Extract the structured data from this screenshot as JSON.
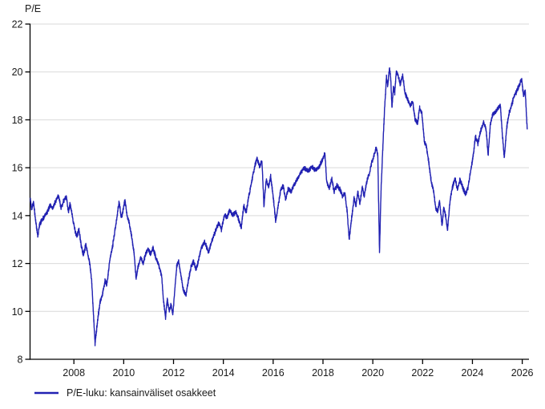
{
  "chart_data": {
    "type": "line",
    "title": "",
    "ylabel": "P/E",
    "xlabel": "",
    "xlim": [
      2006.24,
      2026.27
    ],
    "ylim": [
      8,
      22
    ],
    "x_ticks": [
      2008,
      2010,
      2012,
      2014,
      2016,
      2018,
      2020,
      2022,
      2024,
      2026
    ],
    "y_ticks": [
      8,
      10,
      12,
      14,
      16,
      18,
      20,
      22
    ],
    "grid": "horizontal",
    "legend_position": "bottom-left",
    "render_noise": 0.11,
    "colors": {
      "line": "#2121b2",
      "grid": "#d9d9d9",
      "axis": "#000000",
      "text": "#1a1a1a"
    },
    "series": [
      {
        "name": "P/E-luku: kansainväliset osakkeet",
        "color": "#2121b2",
        "points": [
          [
            2006.25,
            14.7
          ],
          [
            2006.3,
            14.3
          ],
          [
            2006.38,
            14.55
          ],
          [
            2006.45,
            13.9
          ],
          [
            2006.55,
            13.15
          ],
          [
            2006.62,
            13.6
          ],
          [
            2006.72,
            13.85
          ],
          [
            2006.82,
            13.95
          ],
          [
            2006.95,
            14.2
          ],
          [
            2007.05,
            14.45
          ],
          [
            2007.15,
            14.3
          ],
          [
            2007.25,
            14.55
          ],
          [
            2007.38,
            14.85
          ],
          [
            2007.48,
            14.3
          ],
          [
            2007.58,
            14.6
          ],
          [
            2007.7,
            14.8
          ],
          [
            2007.78,
            14.15
          ],
          [
            2007.85,
            14.5
          ],
          [
            2007.95,
            13.9
          ],
          [
            2008.05,
            13.35
          ],
          [
            2008.12,
            13.1
          ],
          [
            2008.2,
            13.45
          ],
          [
            2008.3,
            12.7
          ],
          [
            2008.38,
            12.35
          ],
          [
            2008.48,
            12.8
          ],
          [
            2008.58,
            12.3
          ],
          [
            2008.65,
            11.9
          ],
          [
            2008.72,
            11.2
          ],
          [
            2008.8,
            9.6
          ],
          [
            2008.85,
            8.65
          ],
          [
            2008.95,
            9.6
          ],
          [
            2009.05,
            10.4
          ],
          [
            2009.15,
            10.7
          ],
          [
            2009.25,
            11.3
          ],
          [
            2009.32,
            11.1
          ],
          [
            2009.45,
            12.2
          ],
          [
            2009.55,
            12.7
          ],
          [
            2009.65,
            13.4
          ],
          [
            2009.75,
            14.1
          ],
          [
            2009.82,
            14.6
          ],
          [
            2009.9,
            13.9
          ],
          [
            2009.97,
            14.2
          ],
          [
            2010.05,
            14.65
          ],
          [
            2010.12,
            14.1
          ],
          [
            2010.22,
            13.7
          ],
          [
            2010.32,
            13.1
          ],
          [
            2010.42,
            12.4
          ],
          [
            2010.5,
            11.35
          ],
          [
            2010.58,
            11.9
          ],
          [
            2010.68,
            12.25
          ],
          [
            2010.78,
            12.0
          ],
          [
            2010.88,
            12.4
          ],
          [
            2010.98,
            12.6
          ],
          [
            2011.08,
            12.4
          ],
          [
            2011.18,
            12.65
          ],
          [
            2011.3,
            12.2
          ],
          [
            2011.42,
            11.9
          ],
          [
            2011.52,
            11.5
          ],
          [
            2011.6,
            10.4
          ],
          [
            2011.68,
            9.75
          ],
          [
            2011.75,
            10.5
          ],
          [
            2011.83,
            10.0
          ],
          [
            2011.9,
            10.3
          ],
          [
            2011.97,
            9.85
          ],
          [
            2012.05,
            10.9
          ],
          [
            2012.13,
            11.9
          ],
          [
            2012.2,
            12.1
          ],
          [
            2012.3,
            11.5
          ],
          [
            2012.4,
            10.85
          ],
          [
            2012.5,
            10.7
          ],
          [
            2012.6,
            11.3
          ],
          [
            2012.7,
            11.85
          ],
          [
            2012.8,
            12.1
          ],
          [
            2012.9,
            11.75
          ],
          [
            2013.0,
            12.1
          ],
          [
            2013.1,
            12.6
          ],
          [
            2013.25,
            12.9
          ],
          [
            2013.4,
            12.45
          ],
          [
            2013.55,
            13.0
          ],
          [
            2013.7,
            13.4
          ],
          [
            2013.82,
            13.7
          ],
          [
            2013.92,
            13.4
          ],
          [
            2014.05,
            14.05
          ],
          [
            2014.15,
            13.9
          ],
          [
            2014.25,
            14.25
          ],
          [
            2014.38,
            14.0
          ],
          [
            2014.5,
            14.15
          ],
          [
            2014.6,
            13.9
          ],
          [
            2014.72,
            13.5
          ],
          [
            2014.82,
            14.4
          ],
          [
            2014.92,
            14.15
          ],
          [
            2015.02,
            14.8
          ],
          [
            2015.15,
            15.5
          ],
          [
            2015.25,
            16.0
          ],
          [
            2015.35,
            16.4
          ],
          [
            2015.45,
            16.05
          ],
          [
            2015.55,
            16.25
          ],
          [
            2015.63,
            14.4
          ],
          [
            2015.72,
            15.5
          ],
          [
            2015.82,
            15.2
          ],
          [
            2015.9,
            15.65
          ],
          [
            2016.0,
            14.8
          ],
          [
            2016.1,
            13.75
          ],
          [
            2016.2,
            14.4
          ],
          [
            2016.3,
            15.05
          ],
          [
            2016.4,
            15.25
          ],
          [
            2016.5,
            14.7
          ],
          [
            2016.6,
            15.1
          ],
          [
            2016.72,
            15.0
          ],
          [
            2016.85,
            15.3
          ],
          [
            2016.95,
            15.5
          ],
          [
            2017.1,
            15.8
          ],
          [
            2017.25,
            16.0
          ],
          [
            2017.4,
            15.85
          ],
          [
            2017.55,
            16.05
          ],
          [
            2017.7,
            15.9
          ],
          [
            2017.85,
            16.05
          ],
          [
            2017.95,
            16.25
          ],
          [
            2018.08,
            16.6
          ],
          [
            2018.15,
            15.4
          ],
          [
            2018.25,
            15.15
          ],
          [
            2018.35,
            15.55
          ],
          [
            2018.45,
            15.0
          ],
          [
            2018.55,
            15.25
          ],
          [
            2018.68,
            15.1
          ],
          [
            2018.78,
            14.8
          ],
          [
            2018.88,
            14.95
          ],
          [
            2018.97,
            14.2
          ],
          [
            2019.05,
            13.0
          ],
          [
            2019.15,
            13.9
          ],
          [
            2019.25,
            14.75
          ],
          [
            2019.32,
            14.4
          ],
          [
            2019.4,
            15.0
          ],
          [
            2019.48,
            14.5
          ],
          [
            2019.58,
            15.2
          ],
          [
            2019.65,
            14.8
          ],
          [
            2019.75,
            15.4
          ],
          [
            2019.85,
            15.7
          ],
          [
            2019.95,
            16.2
          ],
          [
            2020.05,
            16.5
          ],
          [
            2020.14,
            16.85
          ],
          [
            2020.2,
            16.5
          ],
          [
            2020.27,
            12.5
          ],
          [
            2020.33,
            15.0
          ],
          [
            2020.4,
            16.8
          ],
          [
            2020.48,
            18.6
          ],
          [
            2020.55,
            19.8
          ],
          [
            2020.6,
            19.4
          ],
          [
            2020.67,
            20.2
          ],
          [
            2020.72,
            19.7
          ],
          [
            2020.77,
            18.5
          ],
          [
            2020.83,
            19.4
          ],
          [
            2020.88,
            19.1
          ],
          [
            2020.94,
            20.0
          ],
          [
            2021.0,
            19.9
          ],
          [
            2021.1,
            19.5
          ],
          [
            2021.2,
            19.85
          ],
          [
            2021.3,
            19.1
          ],
          [
            2021.4,
            18.85
          ],
          [
            2021.5,
            18.6
          ],
          [
            2021.6,
            18.75
          ],
          [
            2021.7,
            18.0
          ],
          [
            2021.8,
            17.85
          ],
          [
            2021.88,
            18.5
          ],
          [
            2021.97,
            18.3
          ],
          [
            2022.07,
            17.1
          ],
          [
            2022.15,
            16.9
          ],
          [
            2022.25,
            16.2
          ],
          [
            2022.35,
            15.4
          ],
          [
            2022.45,
            15.0
          ],
          [
            2022.52,
            14.35
          ],
          [
            2022.6,
            14.15
          ],
          [
            2022.68,
            14.6
          ],
          [
            2022.78,
            13.6
          ],
          [
            2022.85,
            14.35
          ],
          [
            2022.93,
            13.95
          ],
          [
            2023.0,
            13.4
          ],
          [
            2023.1,
            14.6
          ],
          [
            2023.2,
            15.2
          ],
          [
            2023.3,
            15.55
          ],
          [
            2023.4,
            15.1
          ],
          [
            2023.5,
            15.5
          ],
          [
            2023.6,
            15.2
          ],
          [
            2023.72,
            14.9
          ],
          [
            2023.82,
            15.15
          ],
          [
            2023.92,
            15.8
          ],
          [
            2024.02,
            16.4
          ],
          [
            2024.12,
            17.3
          ],
          [
            2024.22,
            17.0
          ],
          [
            2024.32,
            17.5
          ],
          [
            2024.45,
            17.9
          ],
          [
            2024.55,
            17.6
          ],
          [
            2024.63,
            16.55
          ],
          [
            2024.72,
            17.8
          ],
          [
            2024.82,
            18.25
          ],
          [
            2024.92,
            18.3
          ],
          [
            2025.02,
            18.5
          ],
          [
            2025.12,
            18.6
          ],
          [
            2025.2,
            17.4
          ],
          [
            2025.28,
            16.45
          ],
          [
            2025.38,
            17.7
          ],
          [
            2025.48,
            18.3
          ],
          [
            2025.58,
            18.65
          ],
          [
            2025.68,
            19.0
          ],
          [
            2025.78,
            19.2
          ],
          [
            2025.88,
            19.45
          ],
          [
            2025.98,
            19.7
          ],
          [
            2026.05,
            19.0
          ],
          [
            2026.12,
            19.2
          ],
          [
            2026.2,
            17.6
          ]
        ]
      }
    ]
  }
}
